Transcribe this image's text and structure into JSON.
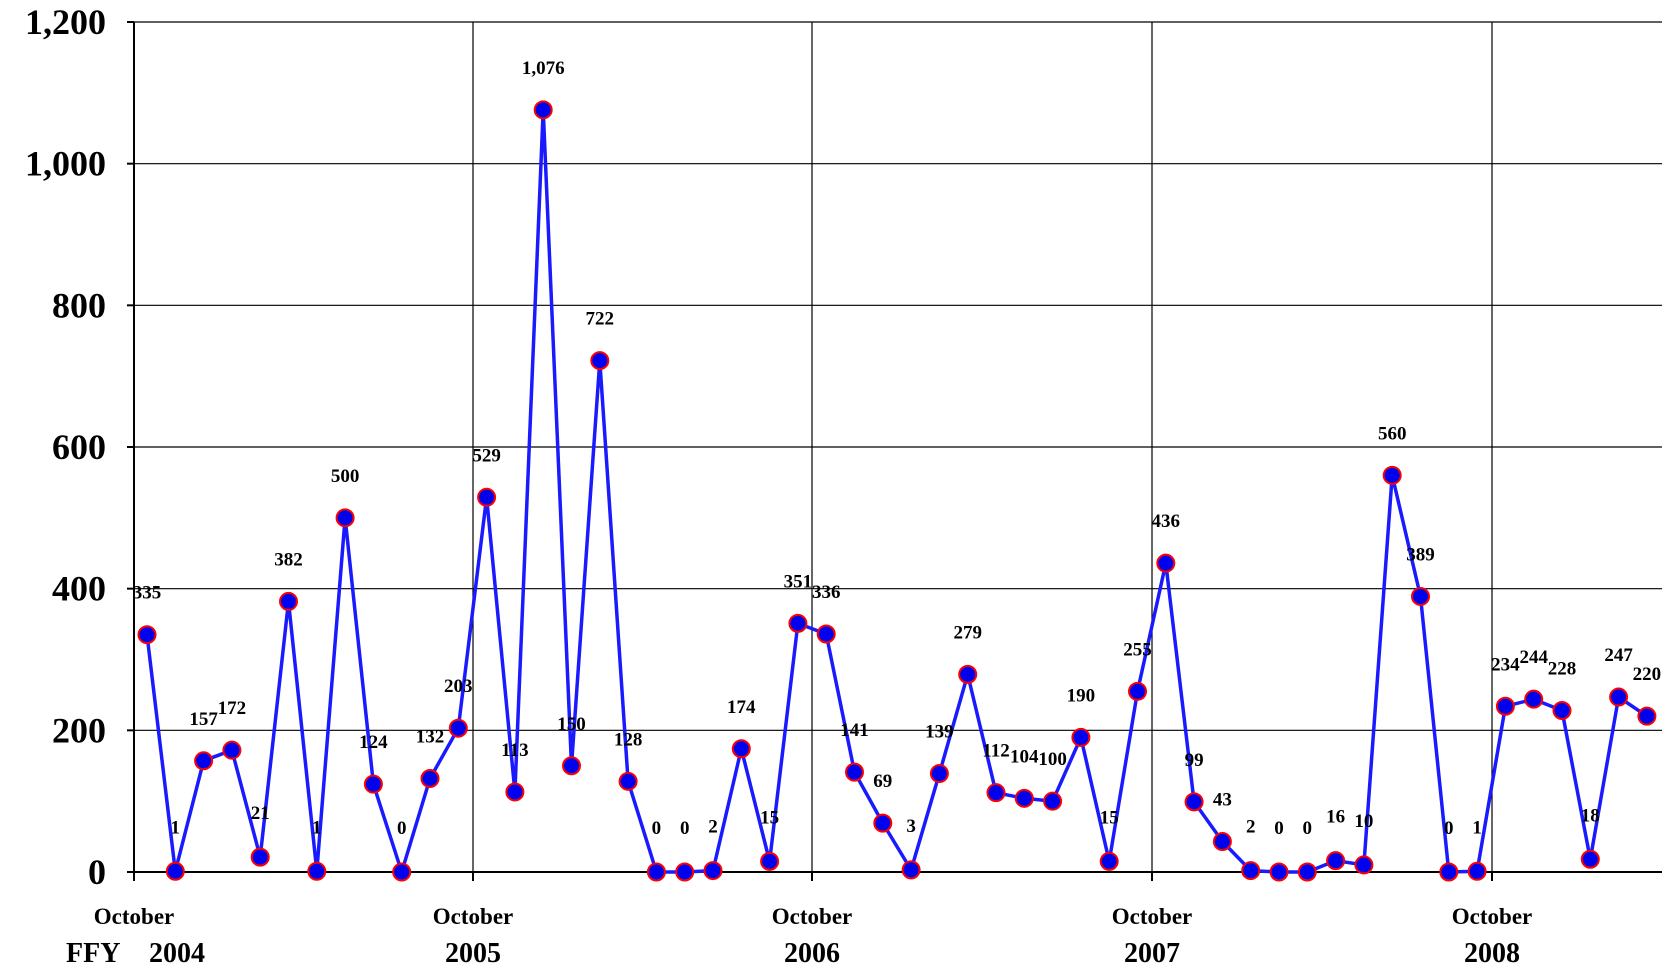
{
  "chart_data": {
    "type": "line",
    "title": "",
    "xlabel": "",
    "ylabel": "",
    "ylim": [
      0,
      1200
    ],
    "yticks": [
      "0",
      "200",
      "400",
      "600",
      "800",
      "1,000",
      "1,200"
    ],
    "ytick_values": [
      0,
      200,
      400,
      600,
      800,
      1000,
      1200
    ],
    "grid": true,
    "x_prefix_label": "FFY",
    "x_major": [
      {
        "month": "October",
        "year": "2004"
      },
      {
        "month": "October",
        "year": "2005"
      },
      {
        "month": "October",
        "year": "2006"
      },
      {
        "month": "October",
        "year": "2007"
      },
      {
        "month": "October",
        "year": "2008"
      }
    ],
    "series": [
      {
        "values": [
          335,
          1,
          157,
          172,
          21,
          382,
          1,
          500,
          124,
          0,
          132,
          203,
          529,
          113,
          1076,
          150,
          722,
          128,
          0,
          0,
          2,
          174,
          15,
          351,
          336,
          141,
          69,
          3,
          139,
          279,
          112,
          104,
          100,
          190,
          15,
          255,
          436,
          99,
          43,
          2,
          0,
          0,
          16,
          10,
          560,
          389,
          0,
          1,
          234,
          244,
          228,
          18,
          247,
          220
        ],
        "labels": [
          "335",
          "1",
          "157",
          "172",
          "21",
          "382",
          "1",
          "500",
          "124",
          "0",
          "132",
          "203",
          "529",
          "113",
          "1,076",
          "150",
          "722",
          "128",
          "0",
          "0",
          "2",
          "174",
          "15",
          "351",
          "336",
          "141",
          "69",
          "3",
          "139",
          "279",
          "112",
          "104",
          "100",
          "190",
          "15",
          "255",
          "436",
          "99",
          "43",
          "2",
          "0",
          "0",
          "16",
          "10",
          "560",
          "389",
          "0",
          "1",
          "234",
          "244",
          "228",
          "18",
          "247",
          "220"
        ]
      }
    ],
    "colors": {
      "line": "#1a1aff",
      "marker_fill": "#0000ee",
      "marker_edge": "#ff0000",
      "grid": "#000000"
    }
  }
}
